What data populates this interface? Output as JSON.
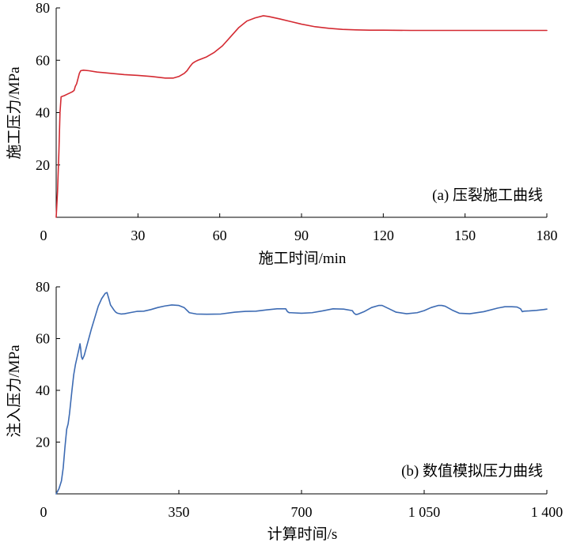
{
  "chart_data": [
    {
      "type": "line",
      "annotation": "(a) 压裂施工曲线",
      "xlabel": "施工时间/min",
      "ylabel": "施工压力/MPa",
      "xlim": [
        0,
        180
      ],
      "ylim": [
        0,
        80
      ],
      "xticks": [
        0,
        30,
        60,
        90,
        120,
        150,
        180
      ],
      "xtick_labels": [
        "0",
        "30",
        "60",
        "90",
        "120",
        "150",
        "180"
      ],
      "yticks": [
        20,
        40,
        60,
        80
      ],
      "ytick_labels": [
        "20",
        "40",
        "60",
        "80"
      ],
      "color": "#d42a32",
      "series": [
        {
          "x": [
            0,
            0.5,
            1.0,
            1.4,
            1.8,
            2.2,
            3,
            4,
            5,
            6,
            6.6,
            7,
            7.5,
            8,
            8.5,
            9,
            10,
            12,
            15,
            20,
            25,
            30,
            35,
            40,
            43,
            45,
            47,
            48,
            49,
            50,
            51,
            52,
            55,
            58,
            61,
            64,
            67,
            70,
            73,
            76,
            78,
            82,
            86,
            90,
            95,
            100,
            105,
            110,
            115,
            120,
            130,
            140,
            150,
            160,
            170,
            180
          ],
          "y": [
            0,
            10,
            25,
            40,
            46,
            46.2,
            46.5,
            47,
            47.5,
            48,
            48.5,
            50,
            51,
            53,
            55,
            56,
            56.2,
            56,
            55.5,
            55,
            54.5,
            54.2,
            53.8,
            53.2,
            53.2,
            53.8,
            55,
            56,
            57.5,
            58.8,
            59.5,
            60,
            61.2,
            63,
            65.5,
            69,
            72.5,
            75,
            76.2,
            77,
            76.7,
            75.8,
            74.8,
            73.8,
            72.8,
            72.2,
            71.8,
            71.6,
            71.5,
            71.5,
            71.4,
            71.4,
            71.4,
            71.4,
            71.4,
            71.4
          ]
        }
      ]
    },
    {
      "type": "line",
      "annotation": "(b) 数值模拟压力曲线",
      "xlabel": "计算时间/s",
      "ylabel": "注入压力/MPa",
      "xlim": [
        0,
        1400
      ],
      "ylim": [
        0,
        80
      ],
      "xticks": [
        0,
        350,
        700,
        1050,
        1400
      ],
      "xtick_labels": [
        "0",
        "350",
        "700",
        "1 050",
        "1 400"
      ],
      "yticks": [
        20,
        40,
        60,
        80
      ],
      "ytick_labels": [
        "20",
        "40",
        "60",
        "80"
      ],
      "color": "#3d6bb3",
      "series": [
        {
          "x": [
            0,
            8,
            15,
            20,
            25,
            30,
            34,
            38,
            45,
            50,
            55,
            60,
            65,
            68,
            70,
            72,
            75,
            80,
            85,
            90,
            95,
            100,
            110,
            120,
            130,
            140,
            145,
            150,
            155,
            160,
            165,
            170,
            175,
            185,
            195,
            210,
            230,
            250,
            270,
            290,
            310,
            330,
            350,
            365,
            380,
            400,
            430,
            470,
            510,
            540,
            570,
            600,
            630,
            655,
            660,
            665,
            670,
            700,
            730,
            760,
            790,
            820,
            845,
            850,
            855,
            860,
            880,
            900,
            920,
            930,
            950,
            970,
            1000,
            1030,
            1050,
            1070,
            1090,
            1100,
            1110,
            1130,
            1150,
            1180,
            1220,
            1260,
            1280,
            1300,
            1315,
            1325,
            1330,
            1335,
            1350,
            1370,
            1390,
            1400
          ],
          "y": [
            0,
            2,
            5,
            10,
            18,
            25,
            27,
            31,
            40,
            46,
            50,
            53,
            56,
            58,
            56,
            53,
            52,
            53.5,
            56,
            58.5,
            61,
            63.5,
            68,
            72.5,
            75.5,
            77.5,
            77.8,
            75.5,
            73,
            72,
            71,
            70.2,
            69.8,
            69.5,
            69.6,
            70,
            70.5,
            70.6,
            71.2,
            72,
            72.6,
            73,
            72.8,
            72,
            70,
            69.5,
            69.4,
            69.5,
            70.2,
            70.5,
            70.6,
            71.1,
            71.5,
            71.5,
            70.4,
            70,
            70,
            69.8,
            70,
            70.7,
            71.5,
            71.4,
            70.8,
            69.8,
            69.3,
            69.4,
            70.5,
            72,
            72.8,
            72.8,
            71.5,
            70.2,
            69.6,
            70,
            70.8,
            72,
            72.8,
            72.8,
            72.5,
            71,
            69.8,
            69.6,
            70.4,
            71.8,
            72.3,
            72.3,
            72.2,
            71.5,
            70.4,
            70.6,
            70.7,
            70.9,
            71.2,
            71.4
          ]
        }
      ]
    }
  ]
}
